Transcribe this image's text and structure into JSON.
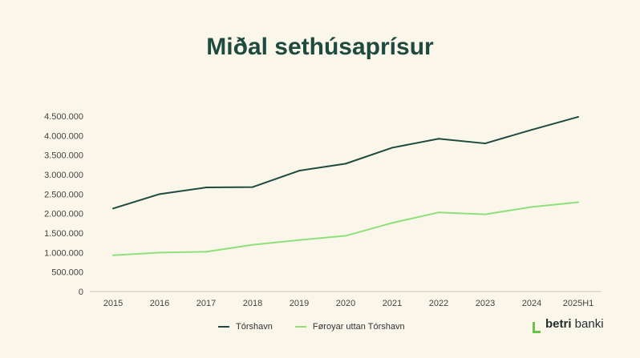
{
  "chart_data": {
    "type": "line",
    "title": "Miðal sethúsaprísur",
    "categories": [
      "2015",
      "2016",
      "2017",
      "2018",
      "2019",
      "2020",
      "2021",
      "2022",
      "2023",
      "2024",
      "2025H1"
    ],
    "ylim": [
      0,
      4500000
    ],
    "yticks": [
      "0",
      "500.000",
      "1.000.000",
      "1.500.000",
      "2.000.000",
      "2.500.000",
      "3.000.000",
      "3.500.000",
      "4.000.000",
      "4.500.000"
    ],
    "series": [
      {
        "name": "Tórshavn",
        "color": "#1f4a3f",
        "values": [
          2130000,
          2500000,
          2670000,
          2680000,
          3100000,
          3280000,
          3690000,
          3920000,
          3800000,
          4150000,
          4480000
        ]
      },
      {
        "name": "Føroyar uttan Tórshavn",
        "color": "#8fe07a",
        "values": [
          930000,
          1000000,
          1020000,
          1200000,
          1320000,
          1430000,
          1760000,
          2030000,
          1980000,
          2170000,
          2290000
        ]
      }
    ],
    "legend_position": "bottom",
    "grid": false
  },
  "logo": {
    "bold": "betri",
    "regular": " banki"
  }
}
